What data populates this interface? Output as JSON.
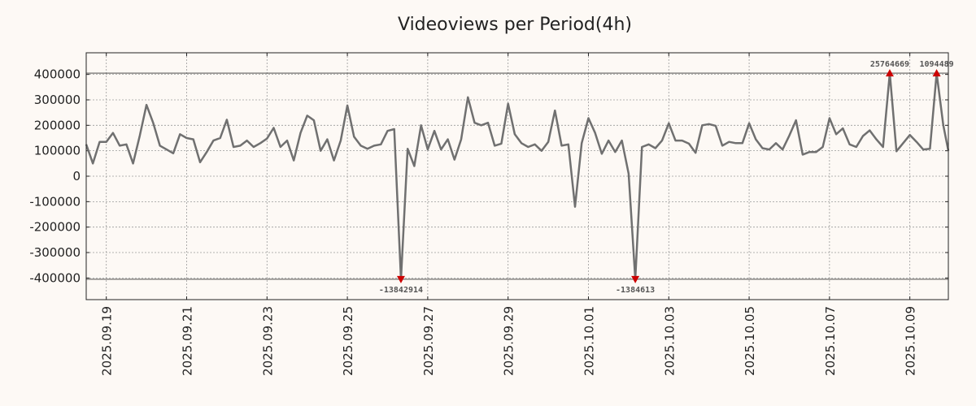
{
  "colors": {
    "background": "#fdf9f5",
    "plot_background": "#fdf9f5",
    "line": "#707070",
    "marker": "#cc0000",
    "grid": "#9a9a9a",
    "ref_line": "#333333"
  },
  "chart_data": {
    "type": "line",
    "title": "Videoviews per Period(4h)",
    "xlabel": "",
    "ylabel": "",
    "grid": true,
    "x_range": [
      "2025.09.18 12:00",
      "2025.10.09 23:00"
    ],
    "ylim": [
      -485000,
      485000
    ],
    "y_ticks": [
      400000,
      300000,
      200000,
      100000,
      0,
      -100000,
      -200000,
      -300000,
      -400000
    ],
    "y_tick_labels": [
      "400000",
      "300000",
      "200000",
      "100000",
      "0",
      "-100000",
      "-200000",
      "-300000",
      "-400000"
    ],
    "x_ticks": [
      "2025.09.19",
      "2025.09.21",
      "2025.09.23",
      "2025.09.25",
      "2025.09.27",
      "2025.09.29",
      "2025.10.01",
      "2025.10.03",
      "2025.10.05",
      "2025.10.07",
      "2025.10.09"
    ],
    "x_tick_dates": [
      "2025-09-19",
      "2025-09-21",
      "2025-09-23",
      "2025-09-25",
      "2025-09-27",
      "2025-09-29",
      "2025-10-01",
      "2025-10-03",
      "2025-10-05",
      "2025-10-07",
      "2025-10-09"
    ],
    "clip_lines": [
      405000,
      -405000
    ],
    "series": [
      {
        "points": [
          [
            "2025-09-18 12:00",
            125000
          ],
          [
            "2025-09-18 16:00",
            50000
          ],
          [
            "2025-09-18 20:00",
            135000
          ],
          [
            "2025-09-19 00:00",
            135000
          ],
          [
            "2025-09-19 04:00",
            170000
          ],
          [
            "2025-09-19 08:00",
            120000
          ],
          [
            "2025-09-19 12:00",
            125000
          ],
          [
            "2025-09-19 16:00",
            50000
          ],
          [
            "2025-09-19 20:00",
            160000
          ],
          [
            "2025-09-20 00:00",
            280000
          ],
          [
            "2025-09-20 04:00",
            210000
          ],
          [
            "2025-09-20 08:00",
            120000
          ],
          [
            "2025-09-20 12:00",
            105000
          ],
          [
            "2025-09-20 16:00",
            90000
          ],
          [
            "2025-09-20 20:00",
            165000
          ],
          [
            "2025-09-21 00:00",
            150000
          ],
          [
            "2025-09-21 04:00",
            145000
          ],
          [
            "2025-09-21 08:00",
            55000
          ],
          [
            "2025-09-21 12:00",
            95000
          ],
          [
            "2025-09-21 16:00",
            140000
          ],
          [
            "2025-09-21 20:00",
            150000
          ],
          [
            "2025-09-22 00:00",
            222000
          ],
          [
            "2025-09-22 04:00",
            115000
          ],
          [
            "2025-09-22 08:00",
            120000
          ],
          [
            "2025-09-22 12:00",
            140000
          ],
          [
            "2025-09-22 16:00",
            115000
          ],
          [
            "2025-09-22 20:00",
            130000
          ],
          [
            "2025-09-23 00:00",
            148000
          ],
          [
            "2025-09-23 04:00",
            190000
          ],
          [
            "2025-09-23 08:00",
            115000
          ],
          [
            "2025-09-23 12:00",
            140000
          ],
          [
            "2025-09-23 16:00",
            62000
          ],
          [
            "2025-09-23 20:00",
            170000
          ],
          [
            "2025-09-24 00:00",
            238000
          ],
          [
            "2025-09-24 04:00",
            220000
          ],
          [
            "2025-09-24 08:00",
            100000
          ],
          [
            "2025-09-24 12:00",
            145000
          ],
          [
            "2025-09-24 16:00",
            62000
          ],
          [
            "2025-09-24 20:00",
            140000
          ],
          [
            "2025-09-25 00:00",
            278000
          ],
          [
            "2025-09-25 04:00",
            155000
          ],
          [
            "2025-09-25 08:00",
            120000
          ],
          [
            "2025-09-25 12:00",
            108000
          ],
          [
            "2025-09-25 16:00",
            120000
          ],
          [
            "2025-09-25 20:00",
            125000
          ],
          [
            "2025-09-26 00:00",
            178000
          ],
          [
            "2025-09-26 04:00",
            185000
          ],
          [
            "2025-09-26 08:00",
            -405000
          ],
          [
            "2025-09-26 12:00",
            108000
          ],
          [
            "2025-09-26 16:00",
            40000
          ],
          [
            "2025-09-26 20:00",
            200000
          ],
          [
            "2025-09-27 00:00",
            105000
          ],
          [
            "2025-09-27 04:00",
            178000
          ],
          [
            "2025-09-27 08:00",
            105000
          ],
          [
            "2025-09-27 12:00",
            145000
          ],
          [
            "2025-09-27 16:00",
            65000
          ],
          [
            "2025-09-27 20:00",
            145000
          ],
          [
            "2025-09-28 00:00",
            310000
          ],
          [
            "2025-09-28 04:00",
            210000
          ],
          [
            "2025-09-28 08:00",
            200000
          ],
          [
            "2025-09-28 12:00",
            210000
          ],
          [
            "2025-09-28 16:00",
            120000
          ],
          [
            "2025-09-28 20:00",
            128000
          ],
          [
            "2025-09-29 00:00",
            285000
          ],
          [
            "2025-09-29 04:00",
            165000
          ],
          [
            "2025-09-29 08:00",
            130000
          ],
          [
            "2025-09-29 12:00",
            115000
          ],
          [
            "2025-09-29 16:00",
            125000
          ],
          [
            "2025-09-29 20:00",
            100000
          ],
          [
            "2025-09-30 00:00",
            135000
          ],
          [
            "2025-09-30 04:00",
            258000
          ],
          [
            "2025-09-30 08:00",
            120000
          ],
          [
            "2025-09-30 12:00",
            125000
          ],
          [
            "2025-09-30 16:00",
            -120000
          ],
          [
            "2025-09-30 20:00",
            130000
          ],
          [
            "2025-10-01 00:00",
            228000
          ],
          [
            "2025-10-01 04:00",
            170000
          ],
          [
            "2025-10-01 08:00",
            88000
          ],
          [
            "2025-10-01 12:00",
            140000
          ],
          [
            "2025-10-01 16:00",
            95000
          ],
          [
            "2025-10-01 20:00",
            140000
          ],
          [
            "2025-10-02 00:00",
            10000
          ],
          [
            "2025-10-02 04:00",
            -405000
          ],
          [
            "2025-10-02 08:00",
            115000
          ],
          [
            "2025-10-02 12:00",
            125000
          ],
          [
            "2025-10-02 16:00",
            110000
          ],
          [
            "2025-10-02 20:00",
            140000
          ],
          [
            "2025-10-03 00:00",
            208000
          ],
          [
            "2025-10-03 04:00",
            140000
          ],
          [
            "2025-10-03 08:00",
            140000
          ],
          [
            "2025-10-03 12:00",
            128000
          ],
          [
            "2025-10-03 16:00",
            92000
          ],
          [
            "2025-10-03 20:00",
            200000
          ],
          [
            "2025-10-04 00:00",
            205000
          ],
          [
            "2025-10-04 04:00",
            198000
          ],
          [
            "2025-10-04 08:00",
            120000
          ],
          [
            "2025-10-04 12:00",
            135000
          ],
          [
            "2025-10-04 16:00",
            130000
          ],
          [
            "2025-10-04 20:00",
            130000
          ],
          [
            "2025-10-05 00:00",
            208000
          ],
          [
            "2025-10-05 04:00",
            145000
          ],
          [
            "2025-10-05 08:00",
            110000
          ],
          [
            "2025-10-05 12:00",
            105000
          ],
          [
            "2025-10-05 16:00",
            130000
          ],
          [
            "2025-10-05 20:00",
            105000
          ],
          [
            "2025-10-06 00:00",
            160000
          ],
          [
            "2025-10-06 04:00",
            220000
          ],
          [
            "2025-10-06 08:00",
            85000
          ],
          [
            "2025-10-06 12:00",
            95000
          ],
          [
            "2025-10-06 16:00",
            95000
          ],
          [
            "2025-10-06 20:00",
            115000
          ],
          [
            "2025-10-07 00:00",
            228000
          ],
          [
            "2025-10-07 04:00",
            165000
          ],
          [
            "2025-10-07 08:00",
            188000
          ],
          [
            "2025-10-07 12:00",
            125000
          ],
          [
            "2025-10-07 16:00",
            115000
          ],
          [
            "2025-10-07 20:00",
            158000
          ],
          [
            "2025-10-08 00:00",
            180000
          ],
          [
            "2025-10-08 04:00",
            145000
          ],
          [
            "2025-10-08 08:00",
            115000
          ],
          [
            "2025-10-08 12:00",
            405000
          ],
          [
            "2025-10-08 16:00",
            98000
          ],
          [
            "2025-10-08 20:00",
            130000
          ],
          [
            "2025-10-09 00:00",
            162000
          ],
          [
            "2025-10-09 04:00",
            135000
          ],
          [
            "2025-10-09 08:00",
            105000
          ],
          [
            "2025-10-09 12:00",
            108000
          ],
          [
            "2025-10-09 16:00",
            405000
          ],
          [
            "2025-10-09 20:00",
            200000
          ],
          [
            "2025-10-09 23:00",
            100000
          ]
        ]
      }
    ],
    "annotations": [
      {
        "x": "2025-09-26 08:00",
        "y": -405000,
        "label": "-13842914",
        "dir": "down"
      },
      {
        "x": "2025-10-02 04:00",
        "y": -405000,
        "label": "-1384613",
        "dir": "down"
      },
      {
        "x": "2025-10-08 12:00",
        "y": 405000,
        "label": "25764669",
        "dir": "up"
      },
      {
        "x": "2025-10-09 16:00",
        "y": 405000,
        "label": "1094489",
        "dir": "up"
      }
    ]
  }
}
